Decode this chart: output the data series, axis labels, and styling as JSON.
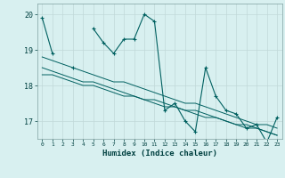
{
  "xlabel": "Humidex (Indice chaleur)",
  "x": [
    0,
    1,
    2,
    3,
    4,
    5,
    6,
    7,
    8,
    9,
    10,
    11,
    12,
    13,
    14,
    15,
    16,
    17,
    18,
    19,
    20,
    21,
    22,
    23
  ],
  "y_main": [
    19.9,
    18.9,
    null,
    18.5,
    null,
    19.6,
    19.2,
    18.9,
    19.3,
    19.3,
    20.0,
    19.8,
    17.3,
    17.5,
    17.0,
    16.7,
    18.5,
    17.7,
    17.3,
    17.2,
    16.8,
    16.9,
    16.4,
    17.1
  ],
  "y_line1": [
    18.3,
    18.3,
    18.2,
    18.1,
    18.0,
    18.0,
    17.9,
    17.8,
    17.7,
    17.7,
    17.6,
    17.5,
    17.4,
    17.4,
    17.3,
    17.2,
    17.1,
    17.1,
    17.0,
    16.9,
    16.8,
    16.8,
    16.7,
    16.6
  ],
  "y_line2": [
    18.5,
    18.4,
    18.3,
    18.2,
    18.1,
    18.1,
    18.0,
    17.9,
    17.8,
    17.7,
    17.6,
    17.6,
    17.5,
    17.4,
    17.3,
    17.3,
    17.2,
    17.1,
    17.0,
    16.9,
    16.9,
    16.8,
    16.7,
    16.6
  ],
  "y_line3": [
    18.8,
    18.7,
    18.6,
    18.5,
    18.4,
    18.3,
    18.2,
    18.1,
    18.1,
    18.0,
    17.9,
    17.8,
    17.7,
    17.6,
    17.5,
    17.5,
    17.4,
    17.3,
    17.2,
    17.1,
    17.0,
    16.9,
    16.9,
    16.8
  ],
  "line_color": "#006060",
  "bg_color": "#d8f0f0",
  "grid_color": "#c0d8d8",
  "ylim": [
    16.5,
    20.3
  ],
  "yticks": [
    17,
    18,
    19,
    20
  ],
  "xlim": [
    -0.5,
    23.5
  ]
}
